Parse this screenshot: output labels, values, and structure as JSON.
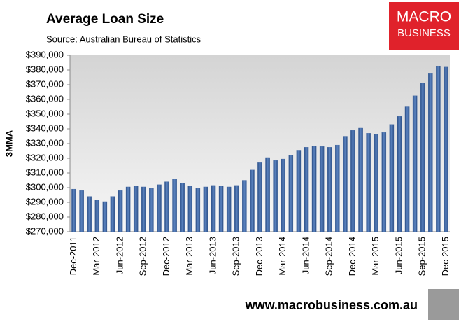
{
  "chart_data": {
    "type": "bar",
    "title": "Average Loan Size",
    "subtitle": "Source: Australian Bureau of Statistics",
    "y_label": "3MMA",
    "categories": [
      "Dec-2011",
      null,
      null,
      "Mar-2012",
      null,
      null,
      "Jun-2012",
      null,
      null,
      "Sep-2012",
      null,
      null,
      "Dec-2012",
      null,
      null,
      "Mar-2013",
      null,
      null,
      "Jun-2013",
      null,
      null,
      "Sep-2013",
      null,
      null,
      "Dec-2013",
      null,
      null,
      "Mar-2014",
      null,
      null,
      "Jun-2014",
      null,
      null,
      "Sep-2014",
      null,
      null,
      "Dec-2014",
      null,
      null,
      "Mar-2015",
      null,
      null,
      "Jun-2015",
      null,
      null,
      "Sep-2015",
      null,
      null,
      "Dec-2015"
    ],
    "values": [
      299000,
      298000,
      294000,
      291500,
      290500,
      294000,
      298000,
      300500,
      301000,
      300500,
      299500,
      302000,
      304000,
      306000,
      303000,
      301000,
      299500,
      300500,
      301500,
      301000,
      300500,
      301500,
      305000,
      312000,
      317000,
      320500,
      318500,
      319500,
      322000,
      325500,
      327500,
      328500,
      328000,
      327500,
      329000,
      335000,
      339000,
      340500,
      337000,
      336500,
      337500,
      343000,
      348500,
      355000,
      362500,
      371000,
      377500,
      382500,
      382000
    ],
    "color": "#3d64a0",
    "ylim": [
      270000,
      390000
    ],
    "yticks": [
      {
        "value": 270000,
        "label": "$270,000"
      },
      {
        "value": 280000,
        "label": "$280,000"
      },
      {
        "value": 290000,
        "label": "$290,000"
      },
      {
        "value": 300000,
        "label": "$300,000"
      },
      {
        "value": 310000,
        "label": "$310,000"
      },
      {
        "value": 320000,
        "label": "$320,000"
      },
      {
        "value": 330000,
        "label": "$330,000"
      },
      {
        "value": 340000,
        "label": "$340,000"
      },
      {
        "value": 350000,
        "label": "$350,000"
      },
      {
        "value": 360000,
        "label": "$360,000"
      },
      {
        "value": 370000,
        "label": "$370,000"
      },
      {
        "value": 380000,
        "label": "$380,000"
      },
      {
        "value": 390000,
        "label": "$390,000"
      }
    ],
    "grid": false
  },
  "logo": {
    "line1": "MACRO",
    "line2": "BUSINESS"
  },
  "footer": "www.macrobusiness.com.au"
}
